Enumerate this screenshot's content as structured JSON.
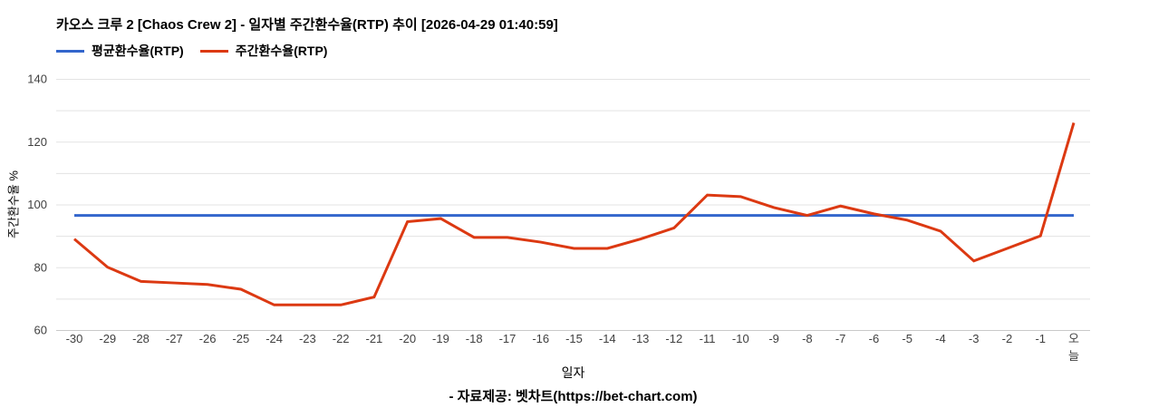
{
  "title": "카오스 크루 2 [Chaos Crew 2] - 일자별 주간환수율(RTP) 추이 [2026-04-29 01:40:59]",
  "legend": [
    {
      "label": "평균환수율(RTP)",
      "color": "#3366cc"
    },
    {
      "label": "주간환수율(RTP)",
      "color": "#dc3912"
    }
  ],
  "footer": "- 자료제공: 벳차트(https://bet-chart.com)",
  "chart_data": {
    "type": "line",
    "title": "카오스 크루 2 [Chaos Crew 2] - 일자별 주간환수율(RTP) 추이 [2026-04-29 01:40:59]",
    "xlabel": "일자",
    "ylabel": "주간환수율 %",
    "ylim": [
      60,
      140
    ],
    "yticks": [
      60,
      80,
      100,
      120,
      140
    ],
    "grid_step": 10,
    "grid": "horizontal-only",
    "legend_position": "top-left",
    "colors": {
      "gridline": "#e3e3e3",
      "baseline": "#c9c9c9",
      "tick_text": "#404040"
    },
    "categories": [
      "-30",
      "-29",
      "-28",
      "-27",
      "-26",
      "-25",
      "-24",
      "-23",
      "-22",
      "-21",
      "-20",
      "-19",
      "-18",
      "-17",
      "-16",
      "-15",
      "-14",
      "-13",
      "-12",
      "-11",
      "-10",
      "-9",
      "-8",
      "-7",
      "-6",
      "-5",
      "-4",
      "-3",
      "-2",
      "-1",
      "오늘"
    ],
    "series": [
      {
        "name": "평균환수율(RTP)",
        "color": "#3366cc",
        "style": "constant",
        "value": 96.5
      },
      {
        "name": "주간환수율(RTP)",
        "color": "#dc3912",
        "values": [
          89,
          80,
          75.5,
          75,
          74.5,
          73,
          68,
          68,
          68,
          70.5,
          94.5,
          95.5,
          89.5,
          89.5,
          88,
          86,
          86,
          89,
          92.5,
          103,
          102.5,
          99,
          96.5,
          99.5,
          97,
          95,
          91.5,
          82,
          86,
          90,
          126
        ]
      }
    ]
  }
}
